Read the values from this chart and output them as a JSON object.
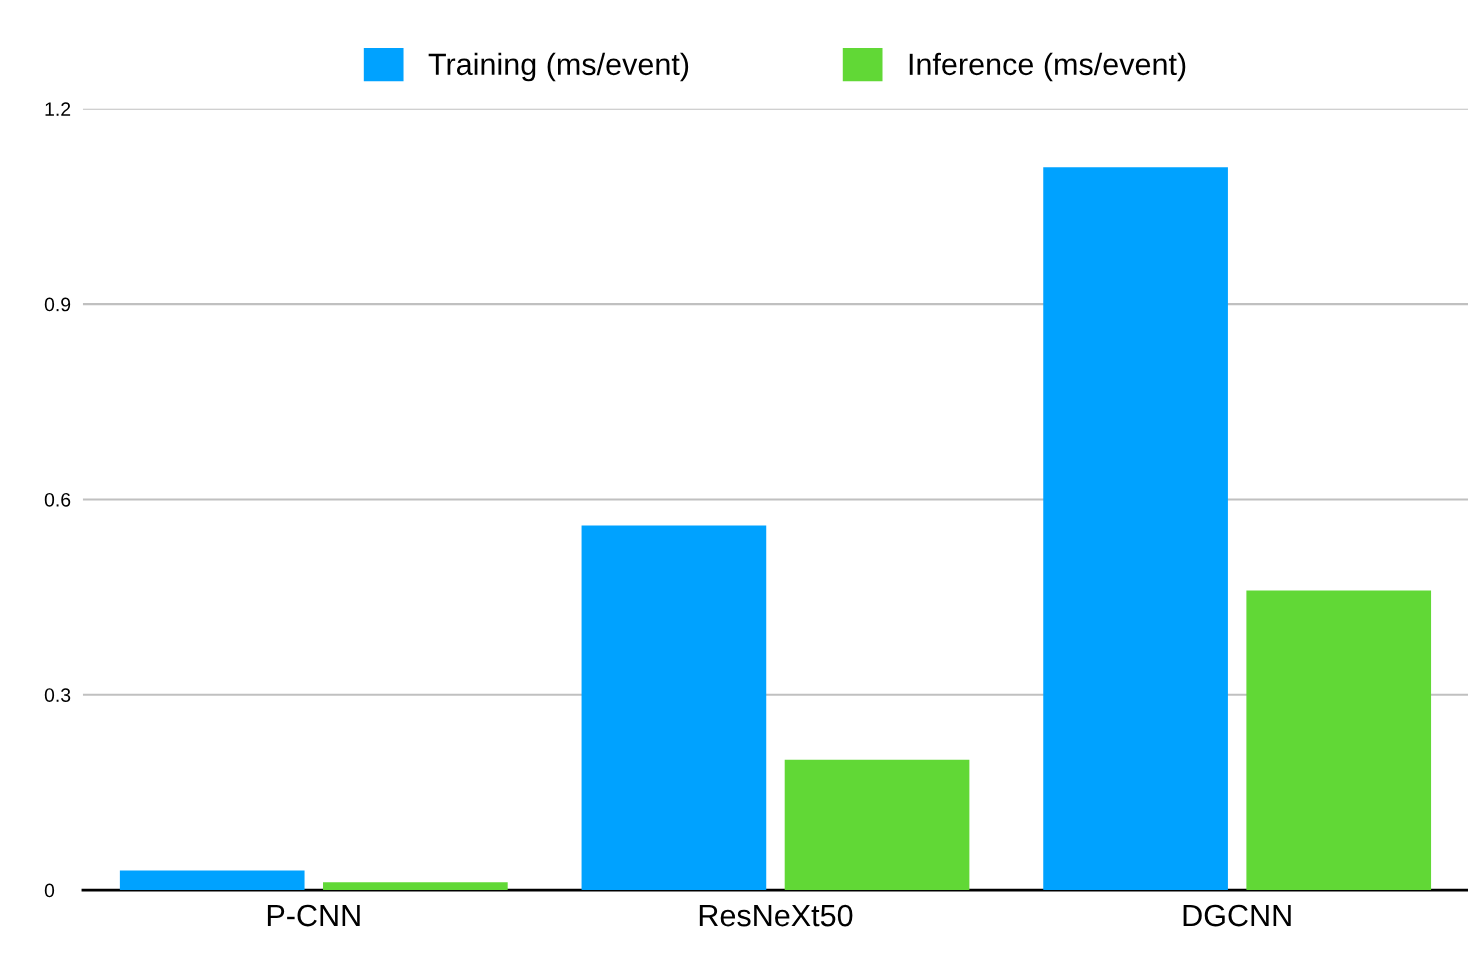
{
  "chart_data": {
    "type": "bar",
    "categories": [
      "P-CNN",
      "ResNeXt50",
      "DGCNN"
    ],
    "series": [
      {
        "name": "Training (ms/event)",
        "color": "#00a2ff",
        "values": [
          0.03,
          0.56,
          1.11
        ]
      },
      {
        "name": "Inference (ms/event)",
        "color": "#61d836",
        "values": [
          0.012,
          0.2,
          0.46
        ]
      }
    ],
    "ylim": [
      0,
      1.2
    ],
    "yticks": [
      0,
      0.3,
      0.6,
      0.9,
      1.2
    ],
    "grid": "y",
    "legend": "top"
  }
}
